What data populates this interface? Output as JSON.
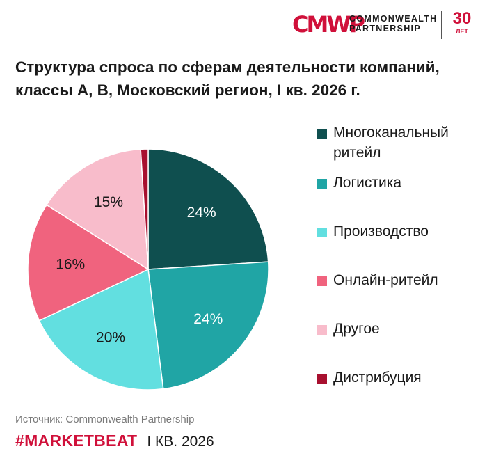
{
  "logo": {
    "mark": "CMWP",
    "name_line1": "COMMONWEALTH",
    "name_line2": "PARTNERSHIP",
    "years": "30",
    "years_sub": "ЛЕТ"
  },
  "chart_data": {
    "type": "pie",
    "title": "Структура спроса по сферам деятельности компаний, классы А, В, Московский регион, I кв. 2026 г.",
    "legend_position": "right",
    "start": "top, clockwise",
    "slices": [
      {
        "name": "Многоканальный ритейл",
        "value": 24,
        "label": "24%",
        "color": "#0f4f4f"
      },
      {
        "name": "Логистика",
        "value": 24,
        "label": "24%",
        "color": "#20a5a5"
      },
      {
        "name": "Производство",
        "value": 20,
        "label": "20%",
        "color": "#62dfe0"
      },
      {
        "name": "Онлайн-ритейл",
        "value": 16,
        "label": "16%",
        "color": "#f0637e"
      },
      {
        "name": "Другое",
        "value": 15,
        "label": "15%",
        "color": "#f8bccb"
      },
      {
        "name": "Дистрибуция",
        "value": 1,
        "label": "",
        "color": "#a8102f"
      }
    ]
  },
  "source": "Источник: Commonwealth Partnership",
  "footer": {
    "hashtag": "#MARKETBEAT",
    "period": "I КВ. 2026"
  }
}
